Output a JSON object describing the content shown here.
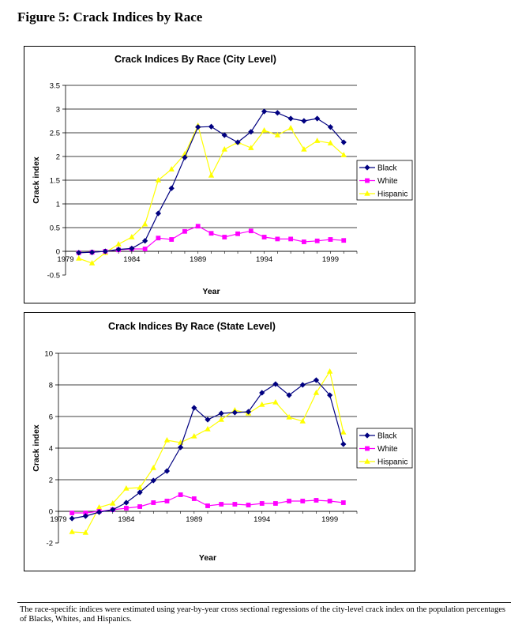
{
  "figure_title": "Figure 5: Crack Indices by Race",
  "footnote": "The race-specific indices were estimated using year-by-year cross sectional regressions of the city-level crack index on the population percentages of Blacks, Whites, and Hispanics.",
  "colors": {
    "black": "#000080",
    "white": "#FF00FF",
    "hispanic": "#FFFF00",
    "grid": "#000000"
  },
  "chart_data": [
    {
      "type": "line",
      "title": "Crack Indices By Race (City Level)",
      "xlabel": "Year",
      "ylabel": "Crack index",
      "xlim": [
        1979,
        2001
      ],
      "ylim": [
        -0.5,
        3.5
      ],
      "yticks": [
        "-0.5",
        "0",
        "0.5",
        "1",
        "1.5",
        "2",
        "2.5",
        "3",
        "3.5"
      ],
      "ytick_values": [
        -0.5,
        0,
        0.5,
        1,
        1.5,
        2,
        2.5,
        3,
        3.5
      ],
      "xticks": [
        "1979",
        "1984",
        "1989",
        "1994",
        "1999"
      ],
      "xtick_values": [
        1979,
        1984,
        1989,
        1994,
        1999
      ],
      "x": [
        1980,
        1981,
        1982,
        1983,
        1984,
        1985,
        1986,
        1987,
        1988,
        1989,
        1990,
        1991,
        1992,
        1993,
        1994,
        1995,
        1996,
        1997,
        1998,
        1999,
        2000
      ],
      "series": [
        {
          "name": "Black",
          "marker": "diamond",
          "values": [
            -0.03,
            -0.02,
            0.0,
            0.04,
            0.06,
            0.22,
            0.8,
            1.33,
            1.98,
            2.62,
            2.63,
            2.45,
            2.3,
            2.52,
            2.95,
            2.92,
            2.8,
            2.75,
            2.8,
            2.62,
            2.3
          ]
        },
        {
          "name": "White",
          "marker": "square",
          "values": [
            -0.03,
            -0.02,
            0.0,
            0.03,
            0.05,
            0.05,
            0.28,
            0.25,
            0.42,
            0.53,
            0.38,
            0.3,
            0.37,
            0.43,
            0.3,
            0.26,
            0.26,
            0.2,
            0.22,
            0.25,
            0.23
          ]
        },
        {
          "name": "Hispanic",
          "marker": "triangle",
          "values": [
            -0.15,
            -0.25,
            -0.03,
            0.15,
            0.3,
            0.57,
            1.5,
            1.73,
            2.05,
            2.65,
            1.6,
            2.15,
            2.3,
            2.18,
            2.55,
            2.45,
            2.6,
            2.15,
            2.33,
            2.28,
            2.03
          ]
        }
      ],
      "legend": "right"
    },
    {
      "type": "line",
      "title": "Crack Indices By Race (State Level)",
      "xlabel": "Year",
      "ylabel": "Crack index",
      "xlim": [
        1979,
        2001
      ],
      "ylim": [
        -2,
        10
      ],
      "yticks": [
        "-2",
        "0",
        "2",
        "4",
        "6",
        "8",
        "10"
      ],
      "ytick_values": [
        -2,
        0,
        2,
        4,
        6,
        8,
        10
      ],
      "xticks": [
        "1979",
        "1984",
        "1989",
        "1994",
        "1999"
      ],
      "xtick_values": [
        1979,
        1984,
        1989,
        1994,
        1999
      ],
      "x": [
        1980,
        1981,
        1982,
        1983,
        1984,
        1985,
        1986,
        1987,
        1988,
        1989,
        1990,
        1991,
        1992,
        1993,
        1994,
        1995,
        1996,
        1997,
        1998,
        1999,
        2000
      ],
      "series": [
        {
          "name": "Black",
          "marker": "diamond",
          "values": [
            -0.45,
            -0.3,
            -0.05,
            0.1,
            0.55,
            1.2,
            1.95,
            2.55,
            4.05,
            6.55,
            5.8,
            6.2,
            6.25,
            6.3,
            7.5,
            8.05,
            7.35,
            8.0,
            8.3,
            7.35,
            4.25
          ]
        },
        {
          "name": "White",
          "marker": "square",
          "values": [
            -0.1,
            -0.1,
            0.0,
            0.1,
            0.2,
            0.3,
            0.55,
            0.65,
            1.05,
            0.8,
            0.35,
            0.45,
            0.45,
            0.4,
            0.5,
            0.5,
            0.65,
            0.65,
            0.7,
            0.65,
            0.55
          ]
        },
        {
          "name": "Hispanic",
          "marker": "triangle",
          "values": [
            -1.3,
            -1.35,
            0.25,
            0.5,
            1.45,
            1.5,
            2.75,
            4.5,
            4.35,
            4.75,
            5.2,
            5.8,
            6.4,
            6.2,
            6.75,
            6.9,
            5.95,
            5.7,
            7.5,
            8.85,
            5.0
          ]
        }
      ],
      "legend": "right"
    }
  ]
}
